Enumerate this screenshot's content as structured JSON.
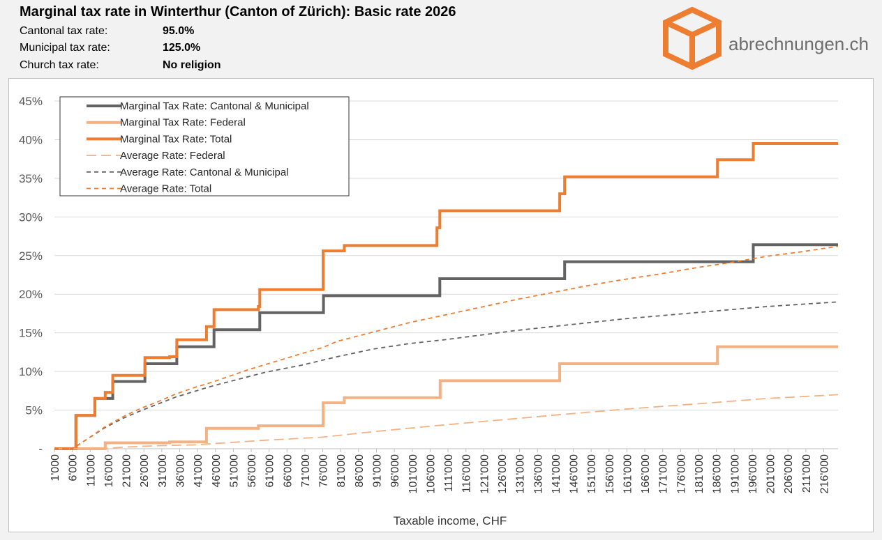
{
  "header": {
    "title": "Marginal tax rate in Winterthur (Canton of Zürich): Basic rate 2026",
    "rows": [
      {
        "label": "Cantonal tax rate:",
        "value": "95.0%"
      },
      {
        "label": "Municipal tax rate:",
        "value": "125.0%"
      },
      {
        "label": "Church tax rate:",
        "value": "No religion"
      }
    ],
    "brand": "abrechnungen.ch"
  },
  "chart_data": {
    "type": "line",
    "xlabel": "Taxable income, CHF",
    "ylabel": "",
    "xlim": [
      1000,
      220000
    ],
    "ylim": [
      0,
      45
    ],
    "grid": true,
    "legend_position": "top-left",
    "x_ticks": [
      "1'000",
      "6'000",
      "11'000",
      "16'000",
      "21'000",
      "26'000",
      "31'000",
      "36'000",
      "41'000",
      "46'000",
      "51'000",
      "56'000",
      "61'000",
      "66'000",
      "71'000",
      "76'000",
      "81'000",
      "86'000",
      "91'000",
      "96'000",
      "101'000",
      "106'000",
      "111'000",
      "116'000",
      "121'000",
      "126'000",
      "131'000",
      "136'000",
      "141'000",
      "146'000",
      "151'000",
      "156'000",
      "161'000",
      "166'000",
      "171'000",
      "176'000",
      "181'000",
      "186'000",
      "191'000",
      "196'000",
      "201'000",
      "206'000",
      "211'000",
      "216'000"
    ],
    "y_ticks": [
      "-",
      "5%",
      "10%",
      "15%",
      "20%",
      "25%",
      "30%",
      "35%",
      "40%",
      "45%"
    ],
    "series": [
      {
        "name": "Marginal Tax Rate: Cantonal & Municipal",
        "color": "#636363",
        "style": "solid-thick",
        "step": true,
        "points": [
          [
            1000,
            0
          ],
          [
            7000,
            0
          ],
          [
            7000,
            4.3
          ],
          [
            12300,
            4.3
          ],
          [
            12300,
            6.5
          ],
          [
            17300,
            6.5
          ],
          [
            17300,
            8.7
          ],
          [
            26300,
            8.7
          ],
          [
            26300,
            11.0
          ],
          [
            35200,
            11.0
          ],
          [
            35200,
            13.2
          ],
          [
            45600,
            13.2
          ],
          [
            45600,
            15.4
          ],
          [
            58400,
            15.4
          ],
          [
            58400,
            17.6
          ],
          [
            76200,
            17.6
          ],
          [
            76200,
            19.8
          ],
          [
            108700,
            19.8
          ],
          [
            108700,
            22.0
          ],
          [
            143600,
            22.0
          ],
          [
            143600,
            24.2
          ],
          [
            196300,
            24.2
          ],
          [
            196300,
            26.4
          ],
          [
            220000,
            26.4
          ]
        ]
      },
      {
        "name": "Marginal Tax Rate: Federal",
        "color": "#f4b183",
        "style": "solid-thick",
        "step": true,
        "points": [
          [
            1000,
            0
          ],
          [
            15200,
            0
          ],
          [
            15200,
            0.77
          ],
          [
            33200,
            0.77
          ],
          [
            33200,
            0.88
          ],
          [
            43500,
            0.88
          ],
          [
            43500,
            2.64
          ],
          [
            58000,
            2.64
          ],
          [
            58000,
            2.97
          ],
          [
            76100,
            2.97
          ],
          [
            76100,
            5.94
          ],
          [
            82000,
            5.94
          ],
          [
            82000,
            6.6
          ],
          [
            108800,
            6.6
          ],
          [
            108800,
            8.8
          ],
          [
            142200,
            8.8
          ],
          [
            142200,
            11.0
          ],
          [
            186300,
            11.0
          ],
          [
            186300,
            13.2
          ],
          [
            220000,
            13.2
          ]
        ]
      },
      {
        "name": "Marginal Tax Rate: Total",
        "color": "#ed7d31",
        "style": "solid-thick",
        "step": true,
        "points": [
          [
            1000,
            0
          ],
          [
            7000,
            0
          ],
          [
            7000,
            4.3
          ],
          [
            12300,
            4.3
          ],
          [
            12300,
            6.5
          ],
          [
            15200,
            6.5
          ],
          [
            15200,
            7.3
          ],
          [
            17300,
            7.3
          ],
          [
            17300,
            9.5
          ],
          [
            26300,
            9.5
          ],
          [
            26300,
            11.8
          ],
          [
            33200,
            11.8
          ],
          [
            33200,
            11.9
          ],
          [
            35200,
            11.9
          ],
          [
            35200,
            14.1
          ],
          [
            43500,
            14.1
          ],
          [
            43500,
            15.8
          ],
          [
            45600,
            15.8
          ],
          [
            45600,
            18.0
          ],
          [
            58000,
            18.0
          ],
          [
            58000,
            18.4
          ],
          [
            58400,
            18.4
          ],
          [
            58400,
            20.6
          ],
          [
            76100,
            20.6
          ],
          [
            76100,
            25.6
          ],
          [
            82000,
            25.6
          ],
          [
            82000,
            26.3
          ],
          [
            107900,
            26.3
          ],
          [
            107900,
            28.6
          ],
          [
            108700,
            28.6
          ],
          [
            108700,
            30.8
          ],
          [
            142200,
            30.8
          ],
          [
            142200,
            33.0
          ],
          [
            143600,
            33.0
          ],
          [
            143600,
            35.2
          ],
          [
            186300,
            35.2
          ],
          [
            186300,
            37.4
          ],
          [
            196300,
            37.4
          ],
          [
            196300,
            39.5
          ],
          [
            220000,
            39.5
          ]
        ]
      },
      {
        "name": "Average Rate: Federal",
        "color": "#f4b183",
        "style": "long-dash",
        "points": [
          [
            1000,
            0
          ],
          [
            15000,
            0
          ],
          [
            20000,
            0.2
          ],
          [
            30000,
            0.4
          ],
          [
            40000,
            0.5
          ],
          [
            50000,
            0.8
          ],
          [
            60000,
            1.1
          ],
          [
            76000,
            1.5
          ],
          [
            90000,
            2.2
          ],
          [
            108000,
            3.0
          ],
          [
            125000,
            3.7
          ],
          [
            142000,
            4.4
          ],
          [
            160000,
            5.1
          ],
          [
            186000,
            6.0
          ],
          [
            200000,
            6.5
          ],
          [
            220000,
            7.0
          ]
        ]
      },
      {
        "name": "Average Rate: Cantonal & Municipal",
        "color": "#636363",
        "style": "dash",
        "points": [
          [
            1000,
            0
          ],
          [
            6000,
            0
          ],
          [
            10000,
            1.2
          ],
          [
            15000,
            2.7
          ],
          [
            20000,
            3.9
          ],
          [
            25000,
            4.9
          ],
          [
            30000,
            5.8
          ],
          [
            35000,
            6.7
          ],
          [
            40000,
            7.4
          ],
          [
            45000,
            8.1
          ],
          [
            50000,
            8.7
          ],
          [
            55000,
            9.3
          ],
          [
            60000,
            9.9
          ],
          [
            70000,
            10.8
          ],
          [
            80000,
            11.9
          ],
          [
            90000,
            12.9
          ],
          [
            100000,
            13.6
          ],
          [
            110000,
            14.1
          ],
          [
            120000,
            14.7
          ],
          [
            130000,
            15.3
          ],
          [
            140000,
            15.8
          ],
          [
            150000,
            16.3
          ],
          [
            160000,
            16.8
          ],
          [
            170000,
            17.2
          ],
          [
            180000,
            17.6
          ],
          [
            190000,
            18.0
          ],
          [
            200000,
            18.4
          ],
          [
            210000,
            18.7
          ],
          [
            220000,
            19.0
          ]
        ]
      },
      {
        "name": "Average Rate: Total",
        "color": "#ed7d31",
        "style": "dash",
        "points": [
          [
            1000,
            0
          ],
          [
            6000,
            0
          ],
          [
            10000,
            1.2
          ],
          [
            15000,
            2.8
          ],
          [
            20000,
            4.1
          ],
          [
            25000,
            5.2
          ],
          [
            30000,
            6.1
          ],
          [
            35000,
            7.1
          ],
          [
            40000,
            7.9
          ],
          [
            45000,
            8.6
          ],
          [
            50000,
            9.4
          ],
          [
            55000,
            10.2
          ],
          [
            60000,
            10.9
          ],
          [
            65000,
            11.6
          ],
          [
            70000,
            12.3
          ],
          [
            76000,
            13.1
          ],
          [
            80000,
            13.9
          ],
          [
            90000,
            15.1
          ],
          [
            100000,
            16.3
          ],
          [
            110000,
            17.3
          ],
          [
            120000,
            18.3
          ],
          [
            130000,
            19.3
          ],
          [
            140000,
            20.2
          ],
          [
            150000,
            21.1
          ],
          [
            160000,
            21.9
          ],
          [
            170000,
            22.6
          ],
          [
            180000,
            23.4
          ],
          [
            190000,
            24.1
          ],
          [
            200000,
            24.9
          ],
          [
            210000,
            25.5
          ],
          [
            220000,
            26.2
          ]
        ]
      }
    ]
  }
}
